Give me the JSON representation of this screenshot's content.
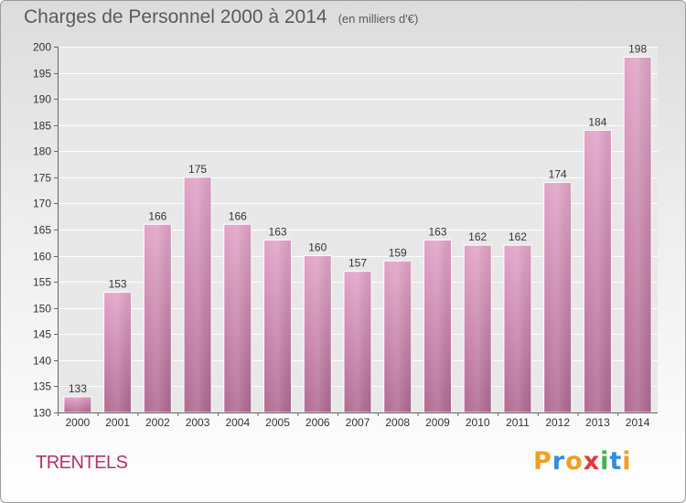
{
  "chart_data": {
    "type": "bar",
    "title": "Charges de Personnel 2000 à 2014",
    "subtitle": "(en milliers d'€)",
    "categories": [
      "2000",
      "2001",
      "2002",
      "2003",
      "2004",
      "2005",
      "2006",
      "2007",
      "2008",
      "2009",
      "2010",
      "2011",
      "2012",
      "2013",
      "2014"
    ],
    "values": [
      133,
      153,
      166,
      175,
      166,
      163,
      160,
      157,
      159,
      163,
      162,
      162,
      174,
      184,
      198
    ],
    "ylim": [
      130,
      200
    ],
    "yticks": [
      130,
      135,
      140,
      145,
      150,
      155,
      160,
      165,
      170,
      175,
      180,
      185,
      190,
      195,
      200
    ],
    "grid": true,
    "bar_color": "#d98fb8"
  },
  "commune": "TRENTELS",
  "logo": {
    "letters": [
      "P",
      "r",
      "o",
      "x",
      "i",
      "t",
      "i"
    ],
    "colors": [
      "#f0a020",
      "#2f8fd8",
      "#f0a020",
      "#e03a3a",
      "#48b048",
      "#2f8fd8",
      "#f0a020"
    ]
  }
}
